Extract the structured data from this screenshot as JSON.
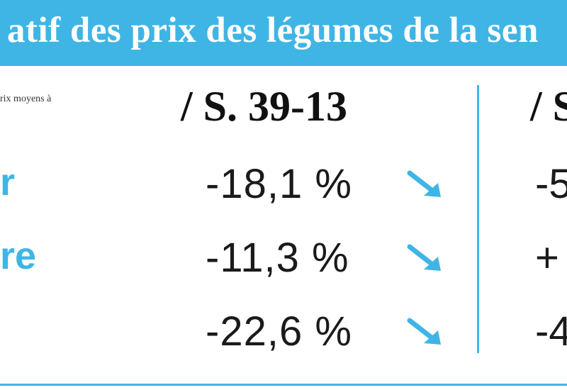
{
  "banner": {
    "title": "atif des prix des légumes de la sen"
  },
  "note": "rix moyens à",
  "columns": [
    {
      "header": "/ S. 39-13"
    },
    {
      "header": "/ S"
    }
  ],
  "rows": [
    {
      "label": "r",
      "value": "-18,1 %",
      "trend": "down",
      "value2": "-5"
    },
    {
      "label": "re",
      "value": "-11,3 %",
      "trend": "down",
      "value2": "+"
    },
    {
      "label": "",
      "value": "-22,6 %",
      "trend": "down",
      "value2": "-4"
    }
  ],
  "colors": {
    "accent": "#3fb5e6",
    "text": "#1a1a1a",
    "background": "#ffffff"
  },
  "icons": {
    "trend_down": "arrow-down-right-icon"
  }
}
